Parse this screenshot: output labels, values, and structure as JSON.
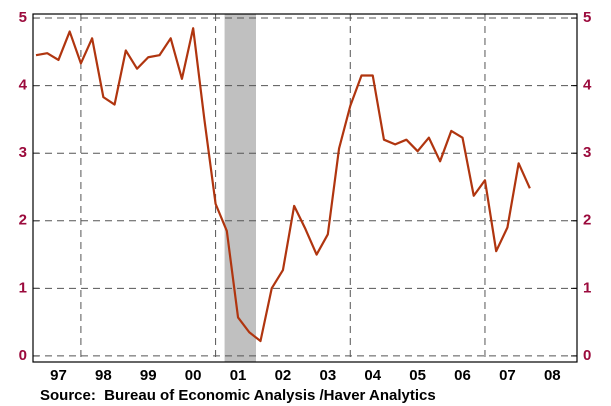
{
  "chart_data": {
    "type": "line",
    "source": "Source:  Bureau of Economic Analysis /Haver Analytics",
    "x": [
      1997,
      1997.25,
      1997.5,
      1997.75,
      1998,
      1998.25,
      1998.5,
      1998.75,
      1999,
      1999.25,
      1999.5,
      1999.75,
      2000,
      2000.25,
      2000.5,
      2000.75,
      2001,
      2001.25,
      2001.5,
      2001.75,
      2002,
      2002.25,
      2002.5,
      2002.75,
      2003,
      2003.25,
      2003.5,
      2003.75,
      2004,
      2004.25,
      2004.5,
      2004.75,
      2005,
      2005.25,
      2005.5,
      2005.75,
      2006,
      2006.25,
      2006.5,
      2006.75,
      2007,
      2007.25,
      2007.5,
      2007.75,
      2008
    ],
    "series": [
      {
        "color": "#b0350f",
        "values": [
          4.45,
          4.48,
          4.38,
          4.8,
          4.33,
          4.7,
          3.83,
          3.72,
          4.52,
          4.25,
          4.42,
          4.45,
          4.7,
          4.1,
          4.85,
          3.5,
          2.25,
          1.85,
          0.57,
          0.35,
          0.22,
          1.0,
          1.27,
          2.22,
          1.88,
          1.5,
          1.8,
          3.07,
          3.7,
          4.15,
          4.15,
          3.2,
          3.13,
          3.2,
          3.03,
          3.23,
          2.88,
          3.33,
          3.23,
          2.37,
          2.6,
          1.55,
          1.9,
          2.85,
          2.48
        ]
      }
    ],
    "xlim": [
      1996.933,
      2009.05
    ],
    "xticks": [
      {
        "value": 1997.5,
        "label": "97"
      },
      {
        "value": 1998.5,
        "label": "98"
      },
      {
        "value": 1999.5,
        "label": "99"
      },
      {
        "value": 2000.5,
        "label": "00"
      },
      {
        "value": 2001.5,
        "label": "01"
      },
      {
        "value": 2002.5,
        "label": "02"
      },
      {
        "value": 2003.5,
        "label": "03"
      },
      {
        "value": 2004.5,
        "label": "04"
      },
      {
        "value": 2005.5,
        "label": "05"
      },
      {
        "value": 2006.5,
        "label": "06"
      },
      {
        "value": 2007.5,
        "label": "07"
      },
      {
        "value": 2008.5,
        "label": "08"
      }
    ],
    "xgrid": [
      1998,
      2001,
      2004,
      2007
    ],
    "ylim": [
      -0.09,
      5.06
    ],
    "yticks": [
      0,
      1,
      2,
      3,
      4,
      5
    ],
    "y2lim": [
      -0.09,
      5.06
    ],
    "y2ticks": [
      0,
      1,
      2,
      3,
      4,
      5
    ],
    "grid": true,
    "shaded": [
      2001.2,
      2001.9
    ],
    "shaded_color": "#c0c0c0"
  }
}
